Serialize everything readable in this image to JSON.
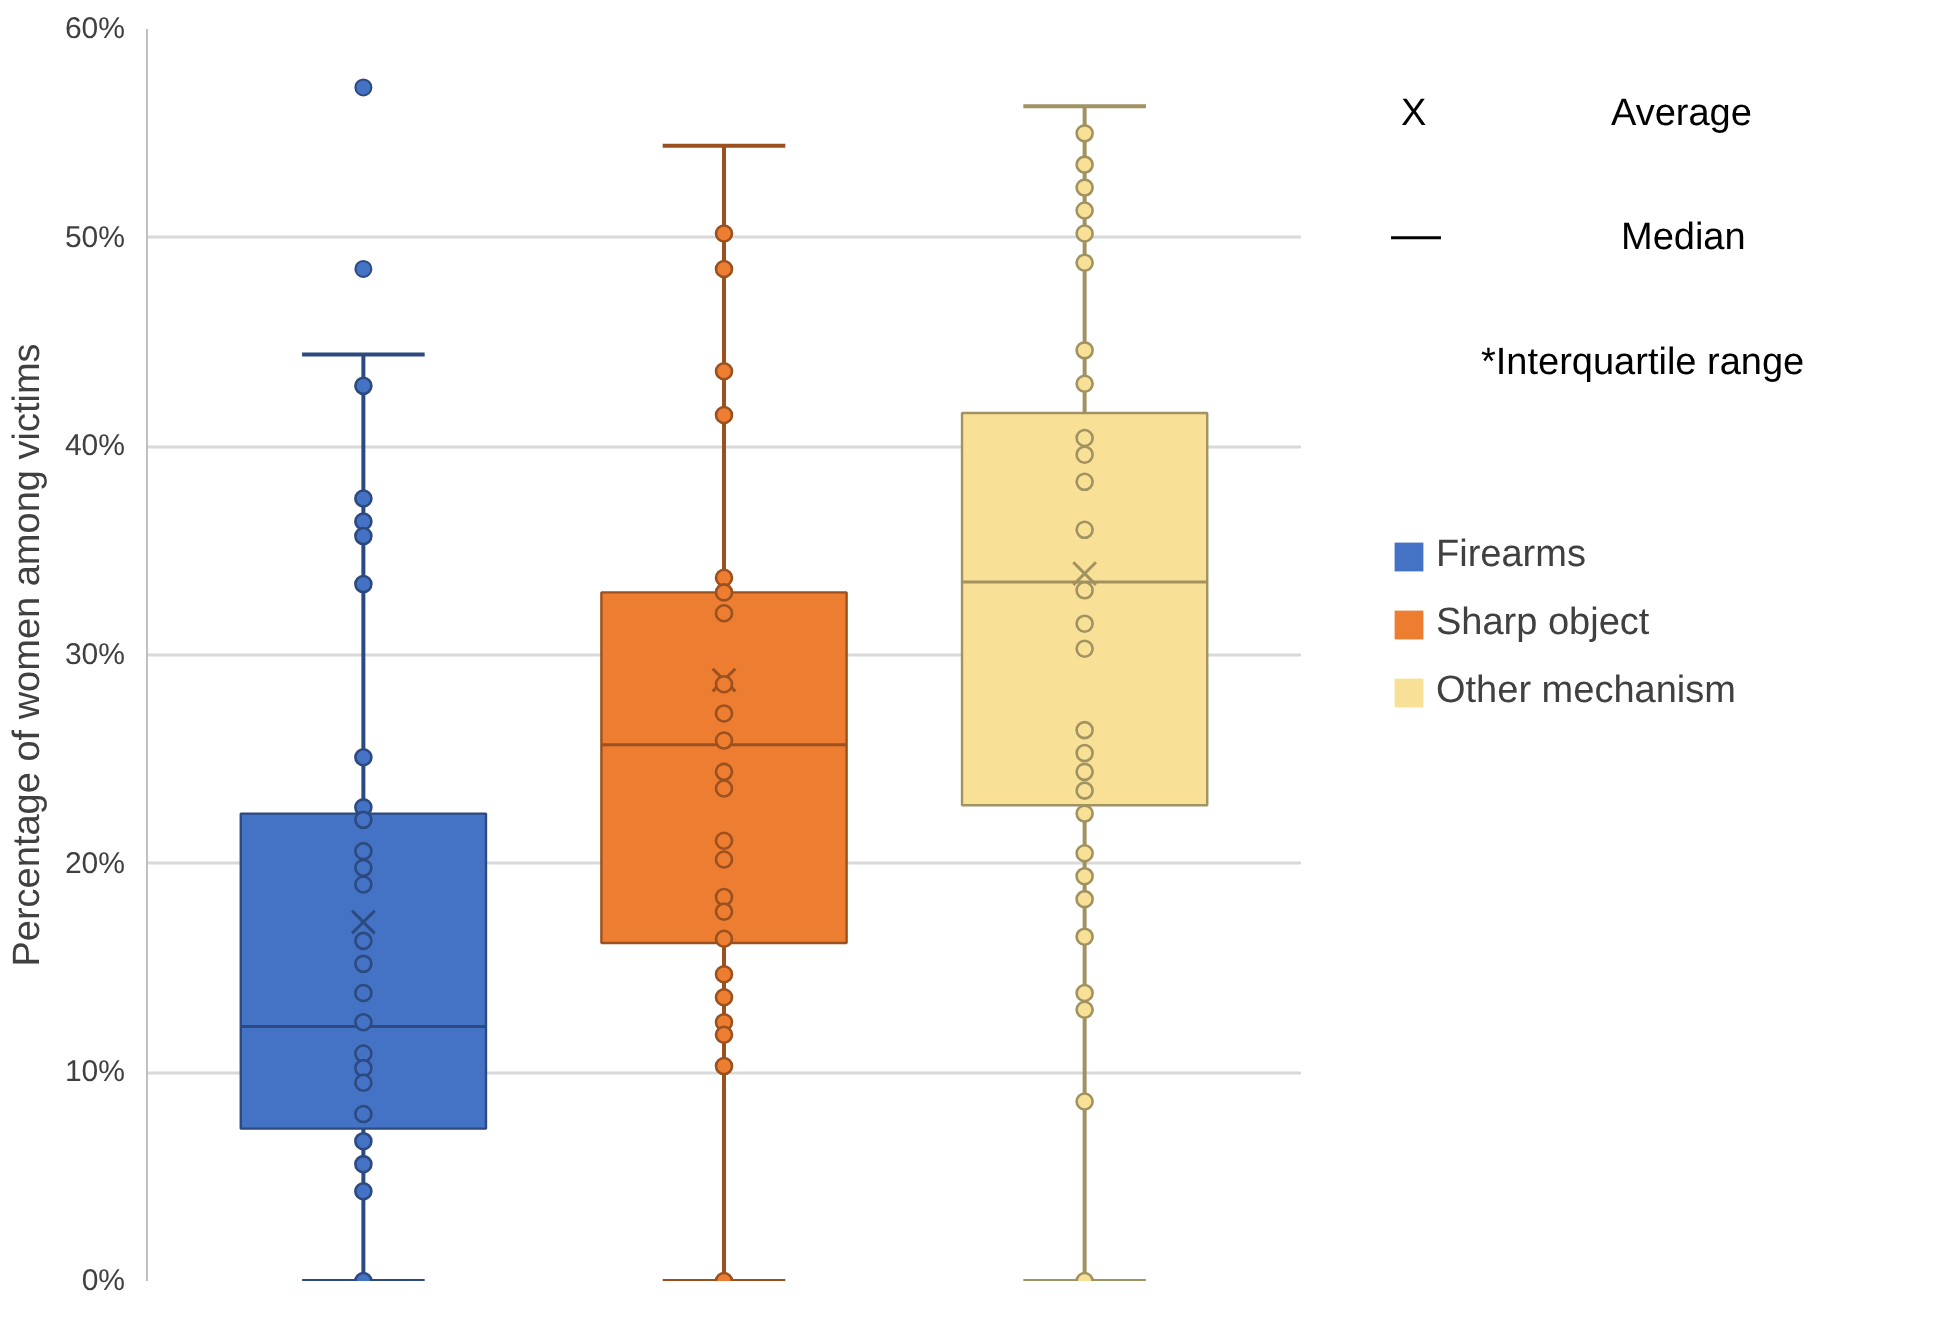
{
  "chart_data": {
    "type": "box",
    "ylabel": "Percentage of women among victims",
    "categories": [
      null,
      null,
      null
    ],
    "ylim": [
      0,
      60
    ],
    "yticks": [
      {
        "value": 0,
        "label": "0%"
      },
      {
        "value": 10,
        "label": "10%"
      },
      {
        "value": 20,
        "label": "20%"
      },
      {
        "value": 30,
        "label": "30%"
      },
      {
        "value": 40,
        "label": "40%"
      },
      {
        "value": 50,
        "label": "50%"
      },
      {
        "value": 60,
        "label": "60%"
      }
    ],
    "tick_labels": "y",
    "grid": "y",
    "legend": "right",
    "annotations": [
      "X",
      "Average",
      "Median",
      "*Interquartile range"
    ],
    "series": [
      {
        "name": "Firearms",
        "color": "#4472c4",
        "boxes": [
          {
            "low": 0,
            "q1": 7.3,
            "median": 12.2,
            "q3": 22.4,
            "high": 44.4,
            "mean": 17.2,
            "outliers": [
              48.5,
              57.2
            ]
          },
          null,
          null
        ]
      },
      {
        "name": "Sharp object",
        "color": "#ed7d31",
        "boxes": [
          null,
          {
            "low": 0,
            "q1": 16.2,
            "median": 25.7,
            "q3": 33.0,
            "high": 54.4,
            "mean": 28.8
          },
          null
        ]
      },
      {
        "name": "Other mechanism",
        "color": "#f8e196",
        "boxes": [
          null,
          null,
          {
            "low": 0,
            "q1": 22.8,
            "median": 33.5,
            "q3": 41.6,
            "high": 56.3,
            "mean": 33.9
          }
        ]
      },
      {
        "type": "scatter",
        "colors": [
          "#4472c4",
          "#ed7d31",
          "#f8e196"
        ],
        "values": [
          42.9,
          50.2,
          55.0
        ]
      },
      {
        "type": "scatter",
        "colors": [
          "#4472c4",
          "#ed7d31",
          "#f8e196"
        ],
        "values": [
          37.5,
          48.5,
          53.5
        ]
      },
      {
        "type": "scatter",
        "colors": [
          "#4472c4",
          "#ed7d31",
          "#f8e196"
        ],
        "values": [
          36.4,
          43.6,
          52.4
        ]
      },
      {
        "type": "scatter",
        "colors": [
          "#4472c4",
          "#ed7d31",
          "#f8e196"
        ],
        "values": [
          35.7,
          41.5,
          51.3
        ]
      },
      {
        "type": "scatter",
        "colors": [
          "#4472c4",
          "#ed7d31",
          "#f8e196"
        ],
        "values": [
          33.4,
          33.7,
          50.2
        ]
      },
      {
        "type": "scatter",
        "colors": [
          "#4472c4",
          "#ed7d31",
          "#f8e196"
        ],
        "values": [
          25.1,
          33.0,
          48.8
        ]
      },
      {
        "type": "scatter",
        "colors": [
          "#4472c4",
          "#ed7d31",
          "#f8e196"
        ],
        "values": [
          22.7,
          32.0,
          44.6
        ]
      },
      {
        "type": "scatter",
        "colors": [
          "#4472c4",
          "#ed7d31",
          "#f8e196"
        ],
        "values": [
          22.1,
          28.6,
          43.0
        ]
      },
      {
        "type": "scatter",
        "colors": [
          "#4472c4",
          "#ed7d31",
          "#f8e196"
        ],
        "values": [
          20.6,
          27.2,
          40.4
        ]
      },
      {
        "type": "scatter",
        "colors": [
          "#4472c4",
          "#ed7d31",
          "#f8e196"
        ],
        "values": [
          19.8,
          25.9,
          39.6
        ]
      },
      {
        "type": "scatter",
        "colors": [
          "#4472c4",
          "#ed7d31",
          "#f8e196"
        ],
        "values": [
          19.0,
          24.4,
          38.3
        ]
      },
      {
        "type": "scatter",
        "colors": [
          "#4472c4",
          "#ed7d31",
          "#f8e196"
        ],
        "values": [
          16.3,
          23.6,
          36.0
        ]
      },
      {
        "type": "scatter",
        "colors": [
          "#4472c4",
          "#ed7d31",
          "#f8e196"
        ],
        "values": [
          15.2,
          21.1,
          33.1
        ]
      },
      {
        "type": "scatter",
        "colors": [
          "#4472c4",
          "#ed7d31",
          "#f8e196"
        ],
        "values": [
          13.8,
          20.2,
          31.5
        ]
      },
      {
        "type": "scatter",
        "colors": [
          "#4472c4",
          "#ed7d31",
          "#f8e196"
        ],
        "values": [
          12.4,
          18.4,
          30.3
        ]
      },
      {
        "type": "scatter",
        "colors": [
          "#4472c4",
          "#ed7d31",
          "#f8e196"
        ],
        "values": [
          10.9,
          17.7,
          26.4
        ]
      },
      {
        "type": "scatter",
        "colors": [
          "#4472c4",
          "#ed7d31",
          "#f8e196"
        ],
        "values": [
          10.2,
          16.4,
          25.3
        ]
      },
      {
        "type": "scatter",
        "colors": [
          "#4472c4",
          "#ed7d31",
          "#f8e196"
        ],
        "values": [
          9.5,
          14.7,
          24.4
        ]
      },
      {
        "type": "scatter",
        "colors": [
          "#4472c4",
          "#ed7d31",
          "#f8e196"
        ],
        "values": [
          8.0,
          13.6,
          23.5
        ]
      },
      {
        "type": "scatter",
        "colors": [
          "#4472c4",
          "#ed7d31",
          "#f8e196"
        ],
        "values": [
          6.7,
          12.4,
          22.4
        ]
      },
      {
        "type": "scatter",
        "colors": [
          "#4472c4",
          "#ed7d31",
          "#f8e196"
        ],
        "values": [
          5.6,
          11.8,
          20.5
        ]
      },
      {
        "type": "scatter",
        "colors": [
          "#4472c4",
          "#ed7d31",
          "#f8e196"
        ],
        "values": [
          4.3,
          10.3,
          19.4
        ]
      },
      {
        "type": "scatter",
        "colors": [
          "#4472c4",
          "#ed7d31",
          "#f8e196"
        ],
        "values": [
          0,
          0,
          18.3
        ]
      },
      {
        "type": "scatter",
        "colors": [
          "#4472c4",
          "#ed7d31",
          "#f8e196"
        ],
        "values": [
          null,
          null,
          16.5
        ]
      },
      {
        "type": "scatter",
        "colors": [
          "#4472c4",
          "#ed7d31",
          "#f8e196"
        ],
        "values": [
          null,
          null,
          13.8
        ]
      },
      {
        "type": "scatter",
        "colors": [
          "#4472c4",
          "#ed7d31",
          "#f8e196"
        ],
        "values": [
          null,
          null,
          13.0
        ]
      },
      {
        "type": "scatter",
        "colors": [
          "#4472c4",
          "#ed7d31",
          "#f8e196"
        ],
        "values": [
          null,
          null,
          8.6
        ]
      },
      {
        "type": "scatter",
        "colors": [
          "#4472c4",
          "#ed7d31",
          "#f8e196"
        ],
        "values": [
          null,
          null,
          0
        ]
      }
    ]
  }
}
